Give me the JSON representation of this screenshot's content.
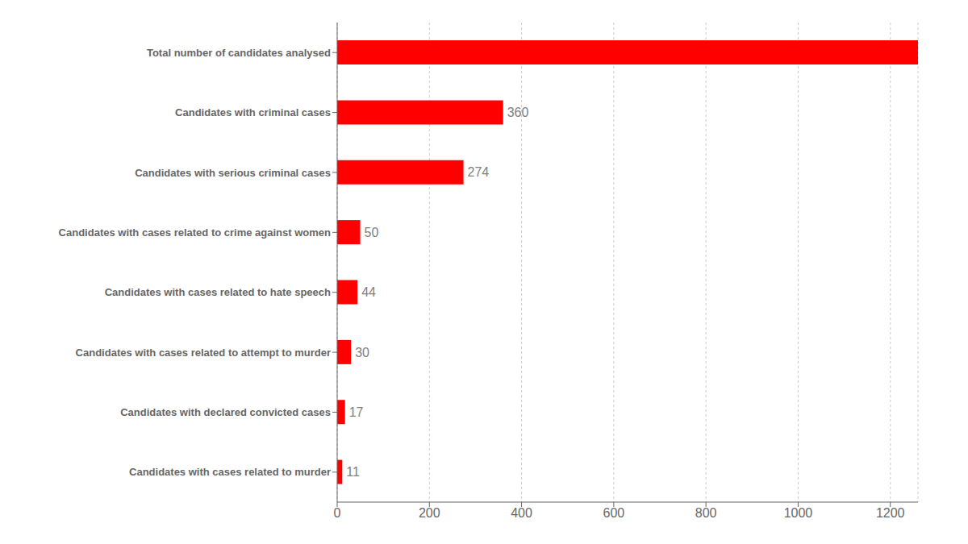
{
  "chart_data": {
    "type": "bar",
    "orientation": "horizontal",
    "categories": [
      "Total number of candidates analysed",
      "Candidates with criminal cases",
      "Candidates with serious criminal cases",
      "Candidates with cases related to crime against women",
      "Candidates with cases related to hate speech",
      "Candidates with cases related to attempt to murder",
      "Candidates with declared convicted cases",
      "Candidates with cases related to murder"
    ],
    "values": [
      1260,
      360,
      274,
      50,
      44,
      30,
      17,
      11
    ],
    "data_labels": true,
    "value_labels": [
      null,
      "360",
      "274",
      "50",
      "44",
      "30",
      "17",
      "11"
    ],
    "color": "#ff0000",
    "xlim": [
      0,
      1260
    ],
    "xticks": [
      0,
      200,
      400,
      600,
      800,
      1000,
      1200
    ],
    "grid": true
  }
}
